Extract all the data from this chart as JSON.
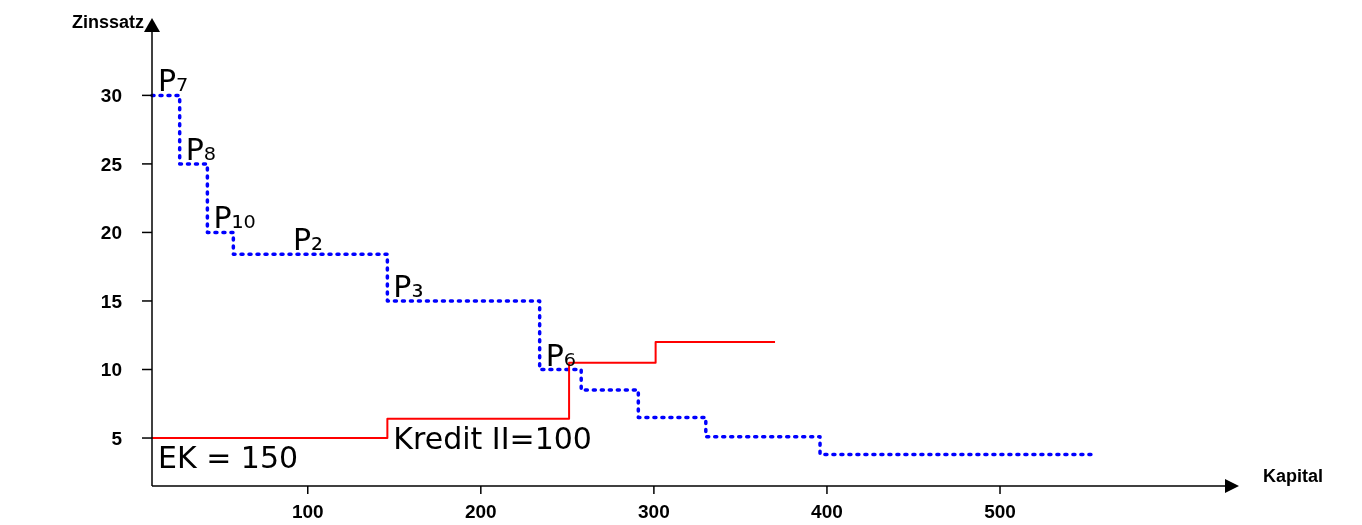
{
  "chart_data": {
    "type": "step",
    "xlabel": "Kapital",
    "ylabel": "Zinssatz",
    "xlim": [
      10,
      630
    ],
    "ylim": [
      1.5,
      35.5
    ],
    "xticks": [
      100,
      200,
      300,
      400,
      500
    ],
    "yticks": [
      5,
      10,
      15,
      20,
      25,
      30
    ],
    "grid": false,
    "series": [
      {
        "color": "#0000ff",
        "line_style": "dotted",
        "x": [
          10,
          26,
          42,
          57,
          146,
          234,
          258,
          291,
          330,
          396,
          554
        ],
        "values": [
          30,
          25,
          20,
          18.4,
          15,
          10,
          8.5,
          6.5,
          5.1,
          3.8,
          3.8
        ]
      },
      {
        "color": "#ff0000",
        "line_style": "solid",
        "x": [
          10,
          146,
          251,
          301,
          370
        ],
        "values": [
          5,
          6.4,
          10.5,
          12,
          12
        ]
      }
    ],
    "annotations": [
      {
        "text": "P₇",
        "x": 10,
        "y": 30
      },
      {
        "text": "P₈",
        "x": 26,
        "y": 25
      },
      {
        "text": "P₁₀",
        "x": 42,
        "y": 20
      },
      {
        "text": "P₂",
        "x": 88,
        "y": 18.4
      },
      {
        "text": "P₃",
        "x": 146,
        "y": 15
      },
      {
        "text": "P₆",
        "x": 234,
        "y": 10
      },
      {
        "text": "EK = 150",
        "x": 10,
        "y": 5
      },
      {
        "text": "Kredit II=100",
        "x": 146,
        "y": 6.4
      }
    ]
  }
}
